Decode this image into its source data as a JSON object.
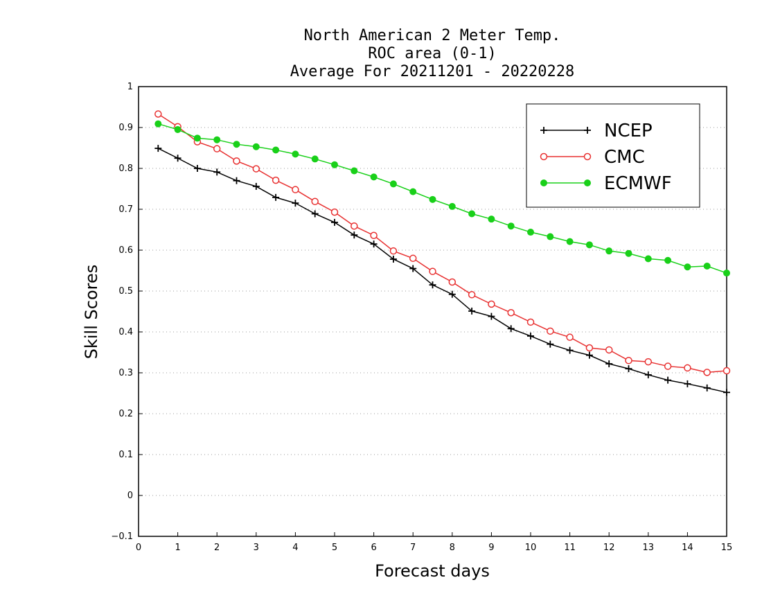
{
  "chart_data": {
    "type": "line",
    "title": [
      "North American 2 Meter Temp.",
      "ROC area (0-1)",
      "Average For 20211201 - 20220228"
    ],
    "xlabel": "Forecast days",
    "ylabel": "Skill Scores",
    "xlim": [
      0,
      15
    ],
    "ylim": [
      -0.1,
      1
    ],
    "xticks": [
      "0",
      "1",
      "2",
      "3",
      "4",
      "5",
      "6",
      "7",
      "8",
      "9",
      "10",
      "11",
      "12",
      "13",
      "14",
      "15"
    ],
    "yticks": [
      "−0.1",
      "0",
      "0.1",
      "0.2",
      "0.3",
      "0.4",
      "0.5",
      "0.6",
      "0.7",
      "0.8",
      "0.9",
      "1"
    ],
    "grid": "horizontal-dotted",
    "legend_position": "top-right",
    "x": [
      0.5,
      1,
      1.5,
      2,
      2.5,
      3,
      3.5,
      4,
      4.5,
      5,
      5.5,
      6,
      6.5,
      7,
      7.5,
      8,
      8.5,
      9,
      9.5,
      10,
      10.5,
      11,
      11.5,
      12,
      12.5,
      13,
      13.5,
      14,
      14.5,
      15
    ],
    "series": [
      {
        "name": "NCEP",
        "color": "#000000",
        "marker": "plus",
        "values": [
          0.849,
          0.825,
          0.8,
          0.791,
          0.77,
          0.756,
          0.729,
          0.715,
          0.689,
          0.668,
          0.637,
          0.615,
          0.578,
          0.555,
          0.515,
          0.492,
          0.451,
          0.438,
          0.408,
          0.39,
          0.37,
          0.355,
          0.343,
          0.322,
          0.31,
          0.295,
          0.282,
          0.273,
          0.263,
          0.252
        ]
      },
      {
        "name": "CMC",
        "color": "#e83030",
        "marker": "open-circle",
        "values": [
          0.933,
          0.902,
          0.865,
          0.848,
          0.818,
          0.799,
          0.771,
          0.748,
          0.719,
          0.693,
          0.659,
          0.636,
          0.598,
          0.58,
          0.548,
          0.522,
          0.491,
          0.468,
          0.447,
          0.424,
          0.402,
          0.387,
          0.361,
          0.356,
          0.33,
          0.327,
          0.316,
          0.312,
          0.301,
          0.305
        ]
      },
      {
        "name": "ECMWF",
        "color": "#19d019",
        "marker": "filled-circle",
        "values": [
          0.909,
          0.895,
          0.874,
          0.87,
          0.859,
          0.853,
          0.845,
          0.835,
          0.823,
          0.809,
          0.794,
          0.779,
          0.762,
          0.743,
          0.724,
          0.707,
          0.689,
          0.676,
          0.659,
          0.644,
          0.633,
          0.621,
          0.613,
          0.598,
          0.592,
          0.579,
          0.575,
          0.559,
          0.561,
          0.544
        ]
      }
    ]
  }
}
